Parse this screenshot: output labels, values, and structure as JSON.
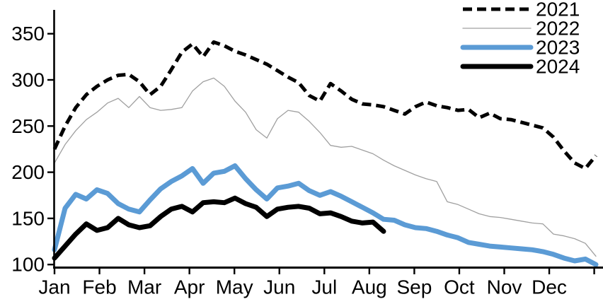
{
  "chart_data": {
    "type": "line",
    "title": "",
    "xlabel": "",
    "ylabel": "",
    "x_axis": {
      "months": [
        "Jan",
        "Feb",
        "Mar",
        "Apr",
        "May",
        "Jun",
        "Jul",
        "Aug",
        "Sep",
        "Oct",
        "Nov",
        "Dec"
      ],
      "unit": "weekly"
    },
    "y_axis": {
      "ticks": [
        100,
        150,
        200,
        250,
        300,
        350
      ],
      "min": 100,
      "max": 350,
      "grid": false
    },
    "legend_position": "top-right",
    "colors": {
      "blue": "#5b9bd5",
      "gray": "#a0a0a0",
      "black": "#000000"
    },
    "series": [
      {
        "name": "2021",
        "style": "dashed",
        "color": "#000000",
        "width": 5,
        "dash": "13 7",
        "values": [
          225,
          250,
          270,
          284,
          293,
          300,
          305,
          306,
          298,
          284,
          293,
          311,
          330,
          339,
          325,
          341,
          337,
          331,
          327,
          322,
          317,
          310,
          303,
          297,
          283,
          277,
          296,
          288,
          279,
          274,
          273,
          271,
          267,
          263,
          271,
          276,
          272,
          270,
          267,
          268,
          259,
          264,
          258,
          257,
          254,
          251,
          248,
          238,
          223,
          210,
          204,
          218
        ]
      },
      {
        "name": "2022",
        "style": "solid",
        "color": "#a0a0a0",
        "width": 1.3,
        "dash": "",
        "values": [
          210,
          230,
          245,
          257,
          265,
          275,
          280,
          270,
          282,
          270,
          267,
          268,
          270,
          288,
          298,
          302,
          293,
          277,
          265,
          246,
          237,
          258,
          267,
          265,
          255,
          243,
          229,
          227,
          228,
          224,
          220,
          213,
          207,
          202,
          197,
          193,
          190,
          168,
          165,
          160,
          155,
          152,
          151,
          149,
          147,
          145,
          144,
          133,
          131,
          128,
          123,
          109
        ]
      },
      {
        "name": "2023",
        "style": "solid",
        "color": "#5b9bd5",
        "width": 7,
        "dash": "",
        "values": [
          116,
          161,
          176,
          171,
          181,
          177,
          166,
          160,
          157,
          170,
          182,
          190,
          196,
          204,
          188,
          199,
          201,
          207,
          193,
          181,
          171,
          183,
          185,
          188,
          180,
          175,
          179,
          174,
          168,
          162,
          156,
          149,
          148,
          143,
          140,
          139,
          136,
          132,
          129,
          124,
          122,
          120,
          119,
          118,
          117,
          116,
          114,
          111,
          107,
          104,
          106,
          100
        ]
      },
      {
        "name": "2024",
        "style": "solid",
        "color": "#000000",
        "width": 7,
        "dash": "",
        "values": [
          107,
          120,
          133,
          144,
          137,
          140,
          150,
          143,
          140,
          142,
          152,
          160,
          163,
          157,
          167,
          168,
          167,
          172,
          166,
          162,
          152,
          160,
          162,
          163,
          161,
          155,
          156,
          152,
          147,
          145,
          146,
          136
        ]
      }
    ]
  }
}
